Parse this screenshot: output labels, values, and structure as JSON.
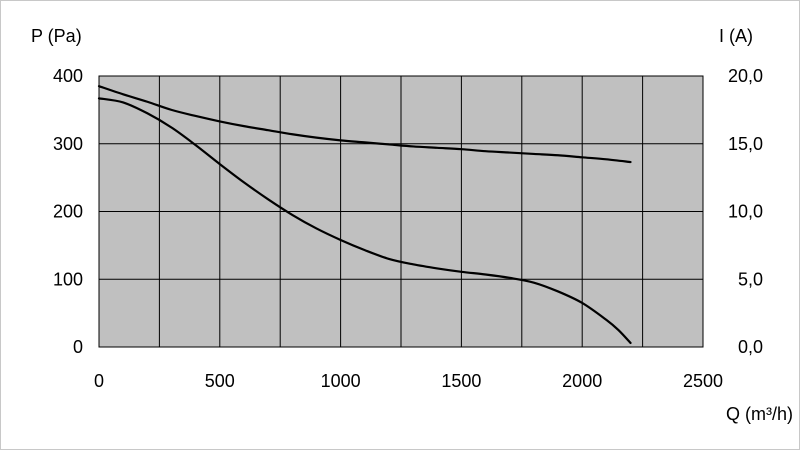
{
  "chart_data": {
    "type": "line",
    "title": "",
    "xlabel": "Q (m³/h)",
    "ylabel_left": "P (Pa)",
    "ylabel_right": "I (A)",
    "xlim": [
      0,
      2500
    ],
    "ylim_left": [
      0,
      400
    ],
    "ylim_right": [
      0.0,
      20.0
    ],
    "x_ticks": [
      "0",
      "500",
      "1000",
      "1500",
      "2000",
      "2500"
    ],
    "y_left_ticks": [
      "0",
      "100",
      "200",
      "300",
      "400"
    ],
    "y_right_ticks": [
      "0,0",
      "5,0",
      "10,0",
      "15,0",
      "20,0"
    ],
    "x_grid_step": 250,
    "grid": true,
    "plot_background": "#c0c0c0",
    "line_color": "#000000",
    "series": [
      {
        "axis": "left",
        "x": [
          0,
          100,
          200,
          300,
          400,
          500,
          600,
          700,
          800,
          900,
          1000,
          1100,
          1200,
          1300,
          1400,
          1500,
          1600,
          1700,
          1800,
          1900,
          2000,
          2100,
          2150,
          2200
        ],
        "y": [
          367,
          361,
          345,
          324,
          298,
          270,
          243,
          218,
          195,
          175,
          158,
          143,
          130,
          122,
          116,
          111,
          107,
          102,
          95,
          82,
          65,
          40,
          25,
          6
        ]
      },
      {
        "axis": "left",
        "x": [
          0,
          100,
          200,
          300,
          400,
          500,
          600,
          700,
          800,
          900,
          1000,
          1100,
          1200,
          1300,
          1400,
          1500,
          1600,
          1700,
          1800,
          1900,
          2000,
          2100,
          2200
        ],
        "y": [
          385,
          373,
          362,
          350,
          341,
          333,
          326,
          320,
          314,
          309,
          305,
          302,
          299,
          296,
          294,
          292,
          289,
          287,
          285,
          283,
          280,
          277,
          273
        ]
      }
    ]
  }
}
